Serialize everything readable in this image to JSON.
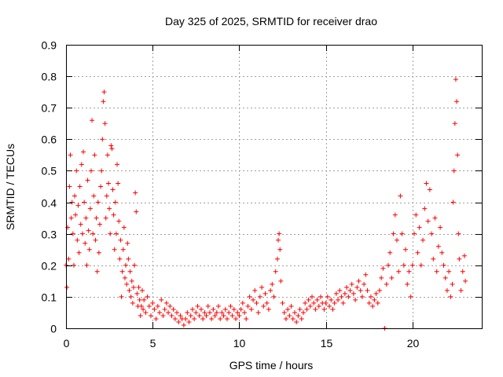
{
  "chart_data": {
    "type": "scatter",
    "title": "Day 325 of 2025, SRMTID for receiver drao",
    "xlabel": "GPS time / hours",
    "ylabel": "SRMTID / TECUs",
    "xlim": [
      0,
      24
    ],
    "ylim": [
      0,
      0.9
    ],
    "xticks": [
      0,
      5,
      10,
      15,
      20
    ],
    "xtick_labels": [
      "0",
      "5",
      "10",
      "15",
      "20"
    ],
    "yticks": [
      0,
      0.1,
      0.2,
      0.3,
      0.4,
      0.5,
      0.6,
      0.7,
      0.8,
      0.9
    ],
    "ytick_labels": [
      "0",
      "0.1",
      "0.2",
      "0.3",
      "0.4",
      "0.5",
      "0.6",
      "0.7",
      "0.8",
      "0.9"
    ],
    "grid": true,
    "marker": "+",
    "series": [
      {
        "name": "SRMTID",
        "color": "#ff0000",
        "points": [
          [
            0.0,
            0.2
          ],
          [
            0.05,
            0.13
          ],
          [
            0.1,
            0.32
          ],
          [
            0.15,
            0.22
          ],
          [
            0.2,
            0.45
          ],
          [
            0.25,
            0.55
          ],
          [
            0.3,
            0.35
          ],
          [
            0.35,
            0.4
          ],
          [
            0.4,
            0.3
          ],
          [
            0.45,
            0.2
          ],
          [
            0.5,
            0.42
          ],
          [
            0.55,
            0.36
          ],
          [
            0.6,
            0.5
          ],
          [
            0.65,
            0.28
          ],
          [
            0.7,
            0.39
          ],
          [
            0.75,
            0.24
          ],
          [
            0.8,
            0.45
          ],
          [
            0.85,
            0.33
          ],
          [
            0.9,
            0.52
          ],
          [
            0.95,
            0.3
          ],
          [
            1.0,
            0.56
          ],
          [
            1.05,
            0.4
          ],
          [
            1.1,
            0.27
          ],
          [
            1.15,
            0.35
          ],
          [
            1.2,
            0.2
          ],
          [
            1.25,
            0.47
          ],
          [
            1.3,
            0.31
          ],
          [
            1.35,
            0.25
          ],
          [
            1.4,
            0.38
          ],
          [
            1.45,
            0.5
          ],
          [
            1.5,
            0.66
          ],
          [
            1.55,
            0.3
          ],
          [
            1.6,
            0.42
          ],
          [
            1.65,
            0.55
          ],
          [
            1.7,
            0.28
          ],
          [
            1.75,
            0.35
          ],
          [
            1.8,
            0.18
          ],
          [
            1.85,
            0.4
          ],
          [
            1.9,
            0.24
          ],
          [
            1.95,
            0.33
          ],
          [
            2.0,
            0.45
          ],
          [
            2.05,
            0.5
          ],
          [
            2.1,
            0.6
          ],
          [
            2.15,
            0.72
          ],
          [
            2.2,
            0.75
          ],
          [
            2.25,
            0.65
          ],
          [
            2.3,
            0.35
          ],
          [
            2.35,
            0.42
          ],
          [
            2.4,
            0.55
          ],
          [
            2.45,
            0.46
          ],
          [
            2.5,
            0.38
          ],
          [
            2.55,
            0.3
          ],
          [
            2.6,
            0.58
          ],
          [
            2.65,
            0.57
          ],
          [
            2.7,
            0.44
          ],
          [
            2.75,
            0.36
          ],
          [
            2.8,
            0.25
          ],
          [
            2.85,
            0.4
          ],
          [
            2.9,
            0.3
          ],
          [
            2.95,
            0.52
          ],
          [
            3.0,
            0.46
          ],
          [
            3.05,
            0.34
          ],
          [
            3.1,
            0.22
          ],
          [
            3.15,
            0.28
          ],
          [
            3.2,
            0.1
          ],
          [
            3.25,
            0.18
          ],
          [
            3.3,
            0.25
          ],
          [
            3.35,
            0.32
          ],
          [
            3.4,
            0.16
          ],
          [
            3.45,
            0.2
          ],
          [
            3.5,
            0.14
          ],
          [
            3.55,
            0.27
          ],
          [
            3.6,
            0.22
          ],
          [
            3.65,
            0.12
          ],
          [
            3.7,
            0.18
          ],
          [
            3.75,
            0.1
          ],
          [
            3.8,
            0.15
          ],
          [
            3.85,
            0.08
          ],
          [
            3.9,
            0.13
          ],
          [
            3.95,
            0.2
          ],
          [
            4.0,
            0.43
          ],
          [
            4.05,
            0.37
          ],
          [
            4.1,
            0.11
          ],
          [
            4.15,
            0.07
          ],
          [
            4.2,
            0.13
          ],
          [
            4.25,
            0.09
          ],
          [
            4.3,
            0.04
          ],
          [
            4.35,
            0.07
          ],
          [
            4.4,
            0.12
          ],
          [
            4.45,
            0.06
          ],
          [
            4.5,
            0.09
          ],
          [
            4.6,
            0.05
          ],
          [
            4.7,
            0.1
          ],
          [
            4.8,
            0.07
          ],
          [
            4.9,
            0.04
          ],
          [
            5.0,
            0.08
          ],
          [
            5.1,
            0.06
          ],
          [
            5.2,
            0.03
          ],
          [
            5.3,
            0.07
          ],
          [
            5.4,
            0.05
          ],
          [
            5.5,
            0.09
          ],
          [
            5.6,
            0.04
          ],
          [
            5.7,
            0.06
          ],
          [
            5.8,
            0.08
          ],
          [
            5.9,
            0.05
          ],
          [
            6.0,
            0.07
          ],
          [
            6.1,
            0.04
          ],
          [
            6.2,
            0.06
          ],
          [
            6.3,
            0.03
          ],
          [
            6.4,
            0.05
          ],
          [
            6.5,
            0.02
          ],
          [
            6.6,
            0.04
          ],
          [
            6.7,
            0.03
          ],
          [
            6.8,
            0.01
          ],
          [
            6.9,
            0.03
          ],
          [
            7.0,
            0.05
          ],
          [
            7.1,
            0.02
          ],
          [
            7.2,
            0.04
          ],
          [
            7.3,
            0.06
          ],
          [
            7.4,
            0.03
          ],
          [
            7.5,
            0.05
          ],
          [
            7.6,
            0.07
          ],
          [
            7.7,
            0.04
          ],
          [
            7.8,
            0.06
          ],
          [
            7.9,
            0.03
          ],
          [
            8.0,
            0.05
          ],
          [
            8.1,
            0.04
          ],
          [
            8.2,
            0.07
          ],
          [
            8.3,
            0.05
          ],
          [
            8.4,
            0.03
          ],
          [
            8.5,
            0.06
          ],
          [
            8.6,
            0.04
          ],
          [
            8.7,
            0.05
          ],
          [
            8.8,
            0.07
          ],
          [
            8.9,
            0.03
          ],
          [
            9.0,
            0.05
          ],
          [
            9.1,
            0.04
          ],
          [
            9.2,
            0.06
          ],
          [
            9.3,
            0.03
          ],
          [
            9.4,
            0.05
          ],
          [
            9.5,
            0.07
          ],
          [
            9.6,
            0.04
          ],
          [
            9.7,
            0.06
          ],
          [
            9.8,
            0.03
          ],
          [
            9.9,
            0.05
          ],
          [
            10.0,
            0.04
          ],
          [
            10.1,
            0.06
          ],
          [
            10.2,
            0.08
          ],
          [
            10.3,
            0.05
          ],
          [
            10.4,
            0.03
          ],
          [
            10.5,
            0.07
          ],
          [
            10.6,
            0.1
          ],
          [
            10.7,
            0.06
          ],
          [
            10.8,
            0.09
          ],
          [
            10.9,
            0.12
          ],
          [
            11.0,
            0.08
          ],
          [
            11.1,
            0.05
          ],
          [
            11.2,
            0.1
          ],
          [
            11.3,
            0.13
          ],
          [
            11.4,
            0.07
          ],
          [
            11.5,
            0.11
          ],
          [
            11.6,
            0.08
          ],
          [
            11.7,
            0.06
          ],
          [
            11.8,
            0.12
          ],
          [
            11.9,
            0.14
          ],
          [
            12.0,
            0.1
          ],
          [
            12.1,
            0.18
          ],
          [
            12.2,
            0.22
          ],
          [
            12.25,
            0.28
          ],
          [
            12.3,
            0.3
          ],
          [
            12.35,
            0.25
          ],
          [
            12.4,
            0.15
          ],
          [
            12.5,
            0.08
          ],
          [
            12.6,
            0.05
          ],
          [
            12.7,
            0.03
          ],
          [
            12.8,
            0.06
          ],
          [
            12.9,
            0.04
          ],
          [
            13.0,
            0.07
          ],
          [
            13.1,
            0.03
          ],
          [
            13.2,
            0.05
          ],
          [
            13.3,
            0.02
          ],
          [
            13.4,
            0.04
          ],
          [
            13.5,
            0.06
          ],
          [
            13.6,
            0.03
          ],
          [
            13.7,
            0.05
          ],
          [
            13.8,
            0.08
          ],
          [
            13.9,
            0.06
          ],
          [
            14.0,
            0.09
          ],
          [
            14.1,
            0.07
          ],
          [
            14.2,
            0.1
          ],
          [
            14.3,
            0.08
          ],
          [
            14.4,
            0.06
          ],
          [
            14.5,
            0.09
          ],
          [
            14.6,
            0.07
          ],
          [
            14.7,
            0.1
          ],
          [
            14.8,
            0.08
          ],
          [
            14.9,
            0.06
          ],
          [
            15.0,
            0.08
          ],
          [
            15.1,
            0.1
          ],
          [
            15.2,
            0.07
          ],
          [
            15.3,
            0.09
          ],
          [
            15.4,
            0.06
          ],
          [
            15.5,
            0.08
          ],
          [
            15.6,
            0.11
          ],
          [
            15.7,
            0.09
          ],
          [
            15.8,
            0.12
          ],
          [
            15.9,
            0.1
          ],
          [
            16.0,
            0.08
          ],
          [
            16.1,
            0.11
          ],
          [
            16.2,
            0.13
          ],
          [
            16.3,
            0.1
          ],
          [
            16.4,
            0.12
          ],
          [
            16.5,
            0.14
          ],
          [
            16.6,
            0.11
          ],
          [
            16.7,
            0.09
          ],
          [
            16.8,
            0.13
          ],
          [
            16.9,
            0.15
          ],
          [
            17.0,
            0.12
          ],
          [
            17.1,
            0.1
          ],
          [
            17.2,
            0.14
          ],
          [
            17.3,
            0.17
          ],
          [
            17.4,
            0.12
          ],
          [
            17.5,
            0.08
          ],
          [
            17.6,
            0.1
          ],
          [
            17.7,
            0.07
          ],
          [
            17.8,
            0.09
          ],
          [
            17.9,
            0.11
          ],
          [
            18.0,
            0.08
          ],
          [
            18.1,
            0.12
          ],
          [
            18.2,
            0.16
          ],
          [
            18.3,
            0.19
          ],
          [
            18.4,
            0.0
          ],
          [
            18.5,
            0.14
          ],
          [
            18.6,
            0.2
          ],
          [
            18.7,
            0.24
          ],
          [
            18.8,
            0.16
          ],
          [
            18.9,
            0.3
          ],
          [
            19.0,
            0.36
          ],
          [
            19.1,
            0.28
          ],
          [
            19.2,
            0.18
          ],
          [
            19.3,
            0.42
          ],
          [
            19.4,
            0.3
          ],
          [
            19.5,
            0.2
          ],
          [
            19.6,
            0.25
          ],
          [
            19.7,
            0.14
          ],
          [
            19.8,
            0.18
          ],
          [
            19.9,
            0.1
          ],
          [
            20.0,
            0.2
          ],
          [
            20.1,
            0.3
          ],
          [
            20.2,
            0.36
          ],
          [
            20.3,
            0.24
          ],
          [
            20.4,
            0.32
          ],
          [
            20.5,
            0.2
          ],
          [
            20.6,
            0.28
          ],
          [
            20.7,
            0.38
          ],
          [
            20.8,
            0.46
          ],
          [
            20.9,
            0.34
          ],
          [
            21.0,
            0.44
          ],
          [
            21.1,
            0.3
          ],
          [
            21.2,
            0.22
          ],
          [
            21.3,
            0.35
          ],
          [
            21.4,
            0.18
          ],
          [
            21.5,
            0.26
          ],
          [
            21.6,
            0.32
          ],
          [
            21.7,
            0.24
          ],
          [
            21.8,
            0.2
          ],
          [
            21.9,
            0.16
          ],
          [
            22.0,
            0.12
          ],
          [
            22.1,
            0.18
          ],
          [
            22.2,
            0.1
          ],
          [
            22.3,
            0.14
          ],
          [
            22.35,
            0.4
          ],
          [
            22.4,
            0.5
          ],
          [
            22.45,
            0.65
          ],
          [
            22.5,
            0.79
          ],
          [
            22.55,
            0.72
          ],
          [
            22.6,
            0.55
          ],
          [
            22.65,
            0.3
          ],
          [
            22.7,
            0.22
          ],
          [
            22.8,
            0.12
          ],
          [
            22.9,
            0.18
          ],
          [
            23.0,
            0.23
          ],
          [
            23.05,
            0.15
          ]
        ]
      }
    ]
  }
}
